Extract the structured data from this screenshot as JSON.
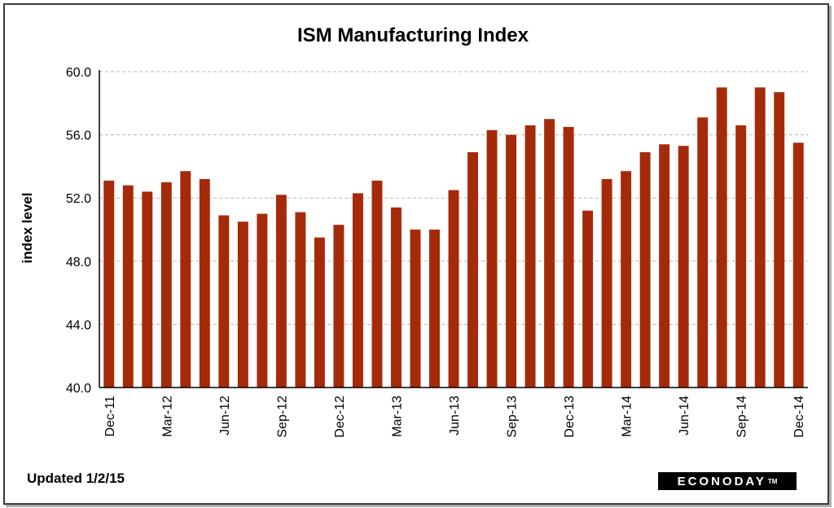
{
  "chart_data": {
    "type": "bar",
    "title": "ISM Manufacturing Index",
    "ylabel": "index level",
    "xlabel": "",
    "ylim": [
      40.0,
      60.0
    ],
    "yticks": [
      "40.0",
      "44.0",
      "48.0",
      "52.0",
      "56.0",
      "60.0"
    ],
    "grid": true,
    "bar_color": "#a52a0a",
    "categories": [
      "Dec-11",
      "Jan-12",
      "Feb-12",
      "Mar-12",
      "Apr-12",
      "May-12",
      "Jun-12",
      "Jul-12",
      "Aug-12",
      "Sep-12",
      "Oct-12",
      "Nov-12",
      "Dec-12",
      "Jan-13",
      "Feb-13",
      "Mar-13",
      "Apr-13",
      "May-13",
      "Jun-13",
      "Jul-13",
      "Aug-13",
      "Sep-13",
      "Oct-13",
      "Nov-13",
      "Dec-13",
      "Jan-14",
      "Feb-14",
      "Mar-14",
      "Apr-14",
      "May-14",
      "Jun-14",
      "Jul-14",
      "Aug-14",
      "Sep-14",
      "Oct-14",
      "Nov-14",
      "Dec-14"
    ],
    "tick_labels": [
      "Dec-11",
      "Mar-12",
      "Jun-12",
      "Sep-12",
      "Dec-12",
      "Mar-13",
      "Jun-13",
      "Sep-13",
      "Dec-13",
      "Mar-14",
      "Jun-14",
      "Sep-14",
      "Dec-14"
    ],
    "values": [
      53.1,
      52.8,
      52.4,
      53.0,
      53.7,
      53.2,
      50.9,
      50.5,
      51.0,
      52.2,
      51.1,
      49.5,
      50.3,
      52.3,
      53.1,
      51.4,
      50.0,
      50.0,
      52.5,
      54.9,
      56.3,
      56.0,
      56.6,
      57.0,
      56.5,
      51.2,
      53.2,
      53.7,
      54.9,
      55.4,
      55.3,
      57.1,
      59.0,
      56.6,
      59.0,
      58.7,
      55.5
    ]
  },
  "footer": {
    "updated": "Updated  1/2/15",
    "logo": "ECONODAY",
    "logo_tm": "TM"
  }
}
